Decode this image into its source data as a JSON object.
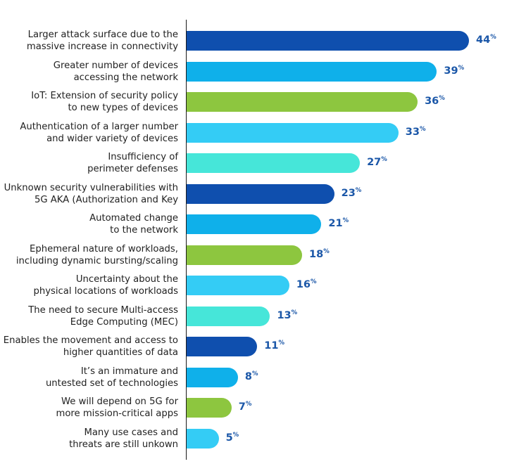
{
  "chart_data": {
    "type": "bar",
    "orientation": "horizontal",
    "unit": "%",
    "categories": [
      [
        "Larger attack surface due to the",
        "massive increase in connectivity"
      ],
      [
        "Greater number of devices",
        "accessing the network"
      ],
      [
        "IoT: Extension of security policy",
        "to new types of devices"
      ],
      [
        "Authentication of a larger number",
        "and wider variety of devices"
      ],
      [
        "Insufficiency of",
        "perimeter defenses"
      ],
      [
        "Unknown security vulnerabilities with",
        "5G AKA (Authorization and Key"
      ],
      [
        "Automated change",
        "to the network"
      ],
      [
        "Ephemeral nature of workloads,",
        "including dynamic bursting/scaling"
      ],
      [
        "Uncertainty about the",
        "physical locations of workloads"
      ],
      [
        "The need to secure Multi-access",
        "Edge Computing (MEC)"
      ],
      [
        "Enables the movement and access to",
        "higher quantities of data"
      ],
      [
        "It’s an immature and",
        "untested set of technologies"
      ],
      [
        "We will depend on 5G for",
        "more mission-critical apps"
      ],
      [
        "Many use cases and",
        "threats are still unkown"
      ]
    ],
    "values": [
      44,
      39,
      36,
      33,
      27,
      23,
      21,
      18,
      16,
      13,
      11,
      8,
      7,
      5
    ],
    "colors": [
      "#0f4fae",
      "#0fb0ea",
      "#8dc63f",
      "#34ccf5",
      "#46e6d9",
      "#0f4fae",
      "#0fb0ea",
      "#8dc63f",
      "#34ccf5",
      "#46e6d9",
      "#0f4fae",
      "#0fb0ea",
      "#8dc63f",
      "#34ccf5"
    ],
    "value_label_color": "#1b57a8",
    "xlim": [
      0,
      44
    ],
    "grid": false,
    "legend": "none"
  }
}
